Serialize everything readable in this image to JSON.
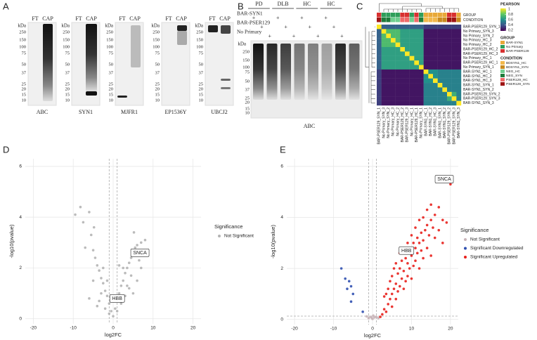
{
  "panel_labels": [
    "A",
    "B",
    "C",
    "D",
    "E"
  ],
  "panel_A": {
    "unit": "kDa",
    "lanes": [
      "FT",
      "CAP"
    ],
    "markers": [
      "250",
      "150",
      "100",
      "75",
      "50",
      "37",
      "25",
      "20",
      "15",
      "10"
    ],
    "antibodies": [
      "ABC",
      "SYN1",
      "MJFR1",
      "EP1536Y",
      "UBCJ2"
    ]
  },
  "panel_B": {
    "groups": [
      "PD",
      "DLB",
      "HC",
      "HC"
    ],
    "rows": [
      {
        "label": "BAR-SYN1",
        "marks": [
          "+",
          null,
          null,
          "+",
          null,
          null,
          "+",
          null,
          null,
          "+",
          null,
          null
        ]
      },
      {
        "label": "BAR-PSER129",
        "marks": [
          null,
          "+",
          null,
          null,
          "+",
          null,
          null,
          "+",
          null,
          null,
          "+",
          null
        ]
      },
      {
        "label": "No Primary",
        "marks": [
          null,
          null,
          "+",
          null,
          null,
          "+",
          null,
          null,
          "+",
          null,
          null,
          "+"
        ]
      }
    ],
    "unit": "kDa",
    "markers": [
      "250",
      "150",
      "100",
      "75",
      "50",
      "37",
      "25",
      "20",
      "15",
      "10"
    ],
    "antibody": "ABC"
  },
  "chart_data": [
    {
      "type": "heatmap",
      "samples": [
        "BAR-PSER129_SYN_1",
        "No Primary_SYN_3",
        "No Primary_SYN_2",
        "No Primary_HC_3",
        "No Primary_HC_2",
        "BAR-PSER129_HC_2",
        "BAR-PSER129_HC_3",
        "No Primary_HC_1",
        "BAR-PSER129_HC_1",
        "No Primary_SYN_1",
        "BAR-SYN1_HC_1",
        "BAR-SYN1_HC_2",
        "BAR-SYN1_HC_3",
        "BAR-SYN1_SYN_1",
        "BAR-SYN1_SYN_2",
        "BAR-PSER129_SYN_2",
        "BAR-PSER129_SYN_3",
        "BAR-SYN1_SYN_3"
      ],
      "values": [
        [
          1,
          0.45,
          0.45,
          0.45,
          0.45,
          0.45,
          0.45,
          0.45,
          0.45,
          0.45,
          0.35,
          0.35,
          0.35,
          0.35,
          0.35,
          0.35,
          0.35,
          0.35
        ],
        [
          0.45,
          1,
          0.75,
          0.75,
          0.75,
          0.65,
          0.65,
          0.65,
          0.65,
          0.65,
          0.25,
          0.25,
          0.25,
          0.25,
          0.25,
          0.25,
          0.25,
          0.25
        ],
        [
          0.45,
          0.75,
          1,
          0.75,
          0.75,
          0.65,
          0.65,
          0.65,
          0.65,
          0.65,
          0.25,
          0.25,
          0.25,
          0.25,
          0.25,
          0.25,
          0.25,
          0.25
        ],
        [
          0.45,
          0.75,
          0.75,
          1,
          0.75,
          0.65,
          0.65,
          0.65,
          0.65,
          0.65,
          0.25,
          0.25,
          0.25,
          0.25,
          0.25,
          0.25,
          0.25,
          0.25
        ],
        [
          0.45,
          0.75,
          0.75,
          0.75,
          1,
          0.65,
          0.65,
          0.65,
          0.65,
          0.65,
          0.25,
          0.25,
          0.25,
          0.25,
          0.25,
          0.25,
          0.25,
          0.25
        ],
        [
          0.45,
          0.65,
          0.65,
          0.65,
          0.65,
          1,
          0.65,
          0.65,
          0.65,
          0.65,
          0.25,
          0.25,
          0.25,
          0.25,
          0.25,
          0.25,
          0.25,
          0.25
        ],
        [
          0.45,
          0.65,
          0.65,
          0.65,
          0.65,
          0.65,
          1,
          0.65,
          0.65,
          0.65,
          0.25,
          0.25,
          0.25,
          0.25,
          0.25,
          0.25,
          0.25,
          0.25
        ],
        [
          0.45,
          0.65,
          0.65,
          0.65,
          0.65,
          0.65,
          0.65,
          1,
          0.65,
          0.65,
          0.25,
          0.25,
          0.25,
          0.25,
          0.25,
          0.25,
          0.25,
          0.25
        ],
        [
          0.45,
          0.65,
          0.65,
          0.65,
          0.65,
          0.65,
          0.65,
          0.65,
          1,
          0.65,
          0.25,
          0.25,
          0.25,
          0.25,
          0.25,
          0.25,
          0.25,
          0.25
        ],
        [
          0.45,
          0.65,
          0.65,
          0.65,
          0.65,
          0.65,
          0.65,
          0.65,
          0.65,
          1,
          0.25,
          0.25,
          0.25,
          0.25,
          0.25,
          0.25,
          0.25,
          0.25
        ],
        [
          0.35,
          0.25,
          0.25,
          0.25,
          0.25,
          0.25,
          0.25,
          0.25,
          0.25,
          0.25,
          1,
          0.6,
          0.6,
          0.55,
          0.55,
          0.55,
          0.55,
          0.55
        ],
        [
          0.35,
          0.25,
          0.25,
          0.25,
          0.25,
          0.25,
          0.25,
          0.25,
          0.25,
          0.25,
          0.6,
          1,
          0.6,
          0.55,
          0.55,
          0.55,
          0.55,
          0.55
        ],
        [
          0.35,
          0.25,
          0.25,
          0.25,
          0.25,
          0.25,
          0.25,
          0.25,
          0.25,
          0.25,
          0.6,
          0.6,
          1,
          0.55,
          0.55,
          0.55,
          0.55,
          0.55
        ],
        [
          0.35,
          0.25,
          0.25,
          0.25,
          0.25,
          0.25,
          0.25,
          0.25,
          0.25,
          0.25,
          0.55,
          0.55,
          0.55,
          1,
          0.55,
          0.55,
          0.55,
          0.55
        ],
        [
          0.35,
          0.25,
          0.25,
          0.25,
          0.25,
          0.25,
          0.25,
          0.25,
          0.25,
          0.25,
          0.55,
          0.55,
          0.55,
          0.55,
          1,
          0.55,
          0.55,
          0.55
        ],
        [
          0.35,
          0.25,
          0.25,
          0.25,
          0.25,
          0.25,
          0.25,
          0.25,
          0.25,
          0.25,
          0.55,
          0.55,
          0.55,
          0.55,
          0.55,
          1,
          0.7,
          0.55
        ],
        [
          0.35,
          0.25,
          0.25,
          0.25,
          0.25,
          0.25,
          0.25,
          0.25,
          0.25,
          0.25,
          0.55,
          0.55,
          0.55,
          0.55,
          0.55,
          0.7,
          1,
          0.55
        ],
        [
          0.35,
          0.25,
          0.25,
          0.25,
          0.25,
          0.25,
          0.25,
          0.25,
          0.25,
          0.25,
          0.55,
          0.55,
          0.55,
          0.55,
          0.55,
          0.55,
          0.55,
          1
        ]
      ],
      "sample_group": [
        "BAR-PSER129",
        "No Primary",
        "No Primary",
        "No Primary",
        "No Primary",
        "BAR-PSER129",
        "BAR-PSER129",
        "No Primary",
        "BAR-PSER129",
        "No Primary",
        "BAR-SYN1",
        "BAR-SYN1",
        "BAR-SYN1",
        "BAR-SYN1",
        "BAR-SYN1",
        "BAR-PSER129",
        "BAR-PSER129",
        "BAR-SYN1"
      ],
      "sample_condition": [
        "PSER129_SYN",
        "NEG_SYN",
        "NEG_SYN",
        "NEG_HC",
        "NEG_HC",
        "PSER129_HC",
        "PSER129_HC",
        "NEG_HC",
        "PSER129_HC",
        "NEG_SYN",
        "BDSYN1_HC",
        "BDSYN1_HC",
        "BDSYN1_HC",
        "BDSYN1_SYN",
        "BDSYN1_SYN",
        "PSER129_SYN",
        "PSER129_SYN",
        "BDSYN1_SYN"
      ],
      "annotation_rows": [
        "GROUP",
        "CONDITION"
      ],
      "colorbar_title": "PEARSON",
      "clim": [
        0.2,
        1
      ],
      "cticks": [
        1,
        0.8,
        0.6,
        0.4,
        0.2
      ],
      "group_legend": {
        "title": "GROUP",
        "names": [
          "BAR-SYN1",
          "No Primary",
          "BAR-PSER129"
        ],
        "colors": [
          "#e8a838",
          "#2e9e5a",
          "#d83030"
        ]
      },
      "condition_legend": {
        "title": "CONDITION",
        "names": [
          "BDSYN1_HC",
          "BDSYN1_SYN",
          "NEG_HC",
          "NEG_SYN",
          "PSER129_HC",
          "PSER129_SYN"
        ],
        "colors": [
          "#f2b84b",
          "#c98a1e",
          "#6fcf8f",
          "#1e7b3a",
          "#f06a6a",
          "#9e1414"
        ]
      }
    },
    {
      "type": "scatter",
      "xlabel": "log2FC",
      "ylabel": "-log10(pvalue)",
      "xlim": [
        -22,
        22
      ],
      "ylim": [
        -0.2,
        6.3
      ],
      "xticks": [
        -20,
        -10,
        0,
        10,
        20
      ],
      "yticks": [
        0,
        2,
        4,
        6
      ],
      "grid": true,
      "vlines": [
        -1,
        1
      ],
      "legend_title": "Significance",
      "series": [
        {
          "name": "Not Significant",
          "color": "#b4b4b4",
          "x": [
            -8.2,
            -9.5,
            -7.5,
            -6,
            -5.5,
            -5,
            -4.5,
            -4,
            -3.5,
            -3,
            -2.5,
            -2,
            -1.5,
            -1,
            -0.5,
            0,
            0.5,
            1,
            1.5,
            2,
            2.5,
            3,
            3.5,
            4,
            4.5,
            5,
            5.5,
            6,
            7,
            8,
            -6,
            -4,
            -3,
            -2,
            -1,
            1,
            2,
            3,
            4,
            5,
            6,
            7,
            -5,
            -3.5,
            2.5,
            3.5,
            4.5,
            -2.5,
            -1.5,
            1.5,
            0.3,
            -0.3,
            6.5,
            -7,
            5.2,
            -4.8
          ],
          "values": [
            4.4,
            4.1,
            3.8,
            4.2,
            3.3,
            2.7,
            2.4,
            2.1,
            1.9,
            1.6,
            1.4,
            1.1,
            0.9,
            0.6,
            0.3,
            0.1,
            0.4,
            0.7,
            1,
            1.3,
            1.5,
            1.8,
            2,
            2.2,
            2.4,
            2.5,
            2.8,
            2.9,
            3,
            3.1,
            0.8,
            0.5,
            1,
            0.4,
            0.2,
            0.3,
            0.6,
            0.9,
            1.2,
            1,
            1.5,
            2,
            1.5,
            0.7,
            2,
            1.3,
            1.7,
            2,
            1.5,
            2.1,
            0.9,
            0.7,
            2.3,
            2.8,
            3.4,
            3.6
          ]
        }
      ],
      "annotations": [
        {
          "text": "SNCA",
          "x": 6.7,
          "y": 2.6
        },
        {
          "text": "HBB",
          "x": 1,
          "y": 0.8
        }
      ]
    },
    {
      "type": "scatter",
      "xlabel": "log2FC",
      "ylabel": "-log10(pvalue)",
      "xlim": [
        -22,
        22
      ],
      "ylim": [
        -0.2,
        6.3
      ],
      "xticks": [
        -20,
        -10,
        0,
        10,
        20
      ],
      "yticks": [
        0,
        2,
        4,
        6
      ],
      "grid": true,
      "vlines": [
        -1,
        1
      ],
      "hline": 0.13,
      "legend_title": "Significance",
      "series": [
        {
          "name": "Not Significant",
          "color": "#c8b4b8",
          "x": [
            -1,
            -0.5,
            0,
            0.5,
            1,
            -1.5,
            1.5,
            0.2,
            -0.2
          ],
          "values": [
            0.05,
            0.1,
            0.02,
            0.08,
            0.1,
            0.12,
            0.05,
            0.15,
            0.06
          ]
        },
        {
          "name": "Significant Downregulated",
          "color": "#3050b0",
          "x": [
            -8,
            -7,
            -6,
            -5.5,
            -5,
            -5.5,
            -6.5,
            -2.5
          ],
          "values": [
            2,
            1.6,
            1.5,
            1.3,
            1,
            0.7,
            1.2,
            0.3
          ]
        },
        {
          "name": "Significant Upregulated",
          "color": "#e8201c",
          "x": [
            2.5,
            3,
            3,
            3.5,
            4,
            4,
            4.5,
            4.5,
            5,
            5,
            5,
            5.5,
            5.5,
            6,
            6,
            6,
            6.5,
            6.5,
            7,
            7,
            7,
            7.5,
            7.5,
            8,
            8,
            8,
            8.5,
            8.5,
            9,
            9,
            9,
            9.5,
            9.5,
            10,
            10,
            10,
            10.5,
            10.5,
            11,
            11,
            11,
            11.5,
            11.5,
            12,
            12,
            12,
            12.5,
            12.5,
            13,
            13,
            13,
            13.5,
            14,
            14,
            14,
            14.5,
            15,
            15,
            15,
            15.5,
            16,
            16,
            17,
            17,
            18,
            18,
            19,
            20,
            3.5,
            2
          ],
          "values": [
            0.2,
            0.4,
            0.9,
            0.3,
            0.6,
            1.2,
            0.8,
            1.5,
            0.5,
            1,
            1.7,
            1.2,
            2,
            0.8,
            1.4,
            2.2,
            1.1,
            1.8,
            1.3,
            2,
            2.6,
            1.6,
            2.3,
            1.2,
            1.9,
            2.7,
            1.5,
            2.4,
            1.7,
            2.2,
            3,
            2,
            2.8,
            1.6,
            2.5,
            3.3,
            2.1,
            3,
            2.3,
            2.8,
            3.6,
            2.6,
            3.2,
            2,
            3,
            3.9,
            2.7,
            3.4,
            2.4,
            3.1,
            4,
            3.5,
            2.8,
            3.7,
            4.3,
            3.3,
            2.5,
            3.9,
            4.5,
            3.6,
            3.2,
            4.1,
            3.5,
            4.4,
            3,
            3.9,
            3.8,
            5.3,
            1,
            0.1
          ]
        }
      ],
      "annotations": [
        {
          "text": "SNCA",
          "x": 18.4,
          "y": 5.5
        },
        {
          "text": "HBB",
          "x": 8.7,
          "y": 2.7
        }
      ]
    }
  ]
}
